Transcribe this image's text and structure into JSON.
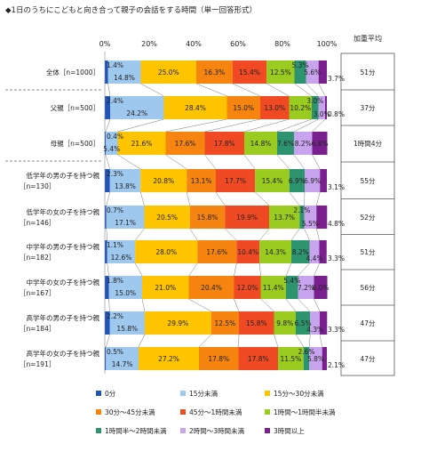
{
  "title": "◆1日のうちにこどもと向き合って親子の会話をする時間（単一回答形式）",
  "avg_header": "加重平均",
  "colors": [
    "#2255b8",
    "#9ec8ee",
    "#ffc400",
    "#f58410",
    "#f04a25",
    "#9acb20",
    "#2e9470",
    "#c8a3ee",
    "#7a1f8e"
  ],
  "chart_data": {
    "type": "bar",
    "orientation": "horizontal",
    "stacked": true,
    "xlim": [
      0,
      100
    ],
    "x_ticks": [
      "0%",
      "20%",
      "40%",
      "60%",
      "80%",
      "100%"
    ],
    "categories": [
      [
        "全体［n=1000］"
      ],
      [
        "父親［n=500］"
      ],
      [
        "母親［n=500］"
      ],
      [
        "低学年の男の子を持つ親",
        "［n=130］"
      ],
      [
        "低学年の女の子を持つ親",
        "［n=146］"
      ],
      [
        "中学年の男の子を持つ親",
        "［n=182］"
      ],
      [
        "中学年の女の子を持つ親",
        "［n=167］"
      ],
      [
        "高学年の男の子を持つ親",
        "［n=184］"
      ],
      [
        "高学年の女の子を持つ親",
        "［n=191］"
      ]
    ],
    "series": [
      {
        "name": "0分",
        "values": [
          1.4,
          2.4,
          0.4,
          2.3,
          0.7,
          1.1,
          1.8,
          2.2,
          0.5
        ]
      },
      {
        "name": "15分未満",
        "values": [
          14.8,
          24.2,
          5.4,
          13.8,
          17.1,
          12.6,
          15.0,
          15.8,
          14.7
        ]
      },
      {
        "name": "15分～30分未満",
        "values": [
          25.0,
          28.4,
          21.6,
          20.8,
          20.5,
          28.0,
          21.0,
          29.9,
          27.2
        ]
      },
      {
        "name": "30分～45分未満",
        "values": [
          16.3,
          15.0,
          17.6,
          13.1,
          15.8,
          17.6,
          20.4,
          12.5,
          17.8
        ]
      },
      {
        "name": "45分～1時間未満",
        "values": [
          15.4,
          13.0,
          17.8,
          17.7,
          19.9,
          10.4,
          12.0,
          15.8,
          17.8
        ]
      },
      {
        "name": "1時間～1時間半未満",
        "values": [
          12.5,
          10.2,
          14.8,
          15.4,
          13.7,
          14.3,
          11.4,
          9.8,
          11.5
        ]
      },
      {
        "name": "1時間半～2時間未満",
        "values": [
          5.3,
          3.0,
          7.6,
          6.9,
          2.1,
          8.2,
          5.4,
          6.5,
          2.6
        ]
      },
      {
        "name": "2時間～3時間未満",
        "values": [
          5.6,
          3.0,
          8.2,
          6.9,
          5.5,
          4.4,
          7.2,
          4.3,
          5.8
        ]
      },
      {
        "name": "3時間以上",
        "values": [
          3.7,
          0.8,
          6.8,
          3.1,
          4.8,
          3.3,
          6.0,
          3.3,
          2.1
        ]
      }
    ],
    "weighted_average": [
      "51分",
      "37分",
      "1時間4分",
      "55分",
      "52分",
      "51分",
      "56分",
      "47分",
      "47分"
    ]
  }
}
